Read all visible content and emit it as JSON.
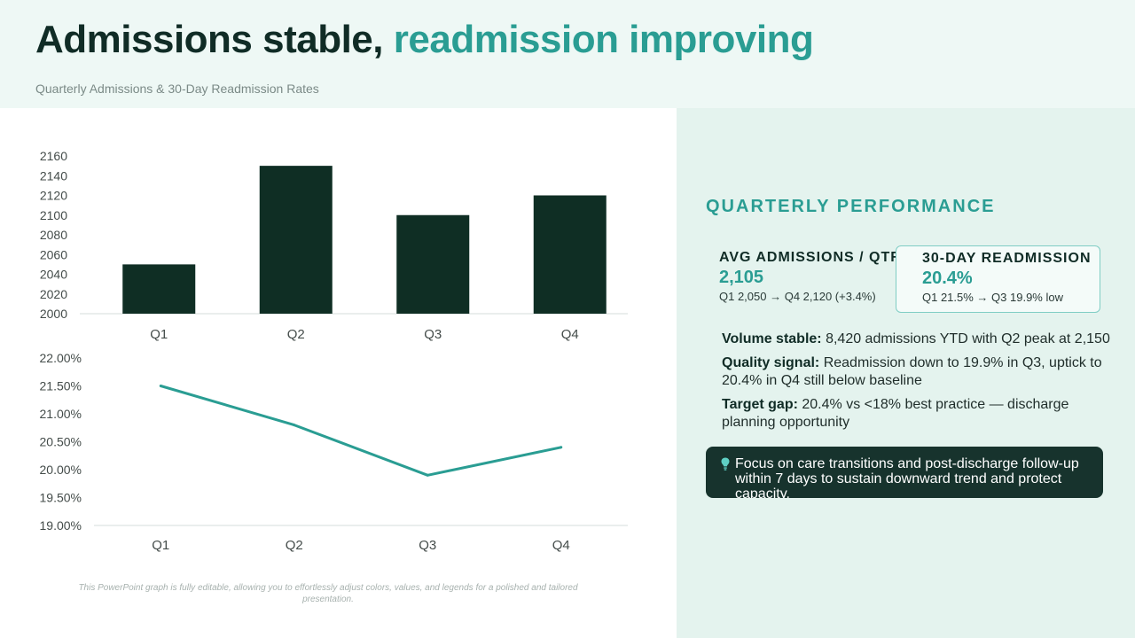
{
  "header": {
    "title_main": "Admissions stable,",
    "title_accent": "readmission improving",
    "subtitle": "Quarterly Admissions & 30-Day Readmission Rates"
  },
  "chart_data": [
    {
      "type": "bar",
      "categories": [
        "Q1",
        "Q2",
        "Q3",
        "Q4"
      ],
      "values": [
        2050,
        2150,
        2100,
        2120
      ],
      "ylim": [
        2000,
        2160
      ],
      "yticks": [
        "2000",
        "2020",
        "2040",
        "2060",
        "2080",
        "2100",
        "2120",
        "2140",
        "2160"
      ],
      "color": "#0f2e24",
      "grid": false
    },
    {
      "type": "line",
      "categories": [
        "Q1",
        "Q2",
        "Q3",
        "Q4"
      ],
      "values": [
        21.5,
        20.8,
        19.9,
        20.4
      ],
      "ylim": [
        19.0,
        22.0
      ],
      "yticks": [
        "19.00%",
        "19.50%",
        "20.00%",
        "20.50%",
        "21.00%",
        "21.50%",
        "22.00%"
      ],
      "color": "#2a9d93",
      "grid": false
    }
  ],
  "panel": {
    "section_title": "QUARTERLY PERFORMANCE",
    "kpis": [
      {
        "label": "AVG ADMISSIONS / QTR",
        "value": "2,105",
        "note": "Q1 2,050 → Q4 2,120 (+3.4%)"
      },
      {
        "label": "30-DAY READMISSION",
        "value": "20.4%",
        "note": "Q1 21.5% → Q3 19.9% low"
      }
    ],
    "bullets": [
      {
        "lead": "Volume stable:",
        "text": " 8,420 admissions YTD with Q2 peak at 2,150"
      },
      {
        "lead": "Quality signal:",
        "text": " Readmission down to 19.9% in Q3, uptick to 20.4% in Q4 still below baseline"
      },
      {
        "lead": "Target gap:",
        "text": " 20.4% vs <18% best practice — discharge planning opportunity"
      }
    ],
    "callout": {
      "icon": "lightbulb-icon",
      "text": "Focus on care transitions and post-discharge follow-up within 7 days to sustain downward trend and protect capacity."
    }
  },
  "footnote": "This PowerPoint graph is fully editable, allowing you to effortlessly adjust colors, values, and legends for a polished and tailored presentation.",
  "colors": {
    "accent": "#2a9d93",
    "dark": "#102c26",
    "bar": "#0f2e24",
    "panel_bg": "#e4f3ee",
    "header_bg": "#eef8f5"
  }
}
